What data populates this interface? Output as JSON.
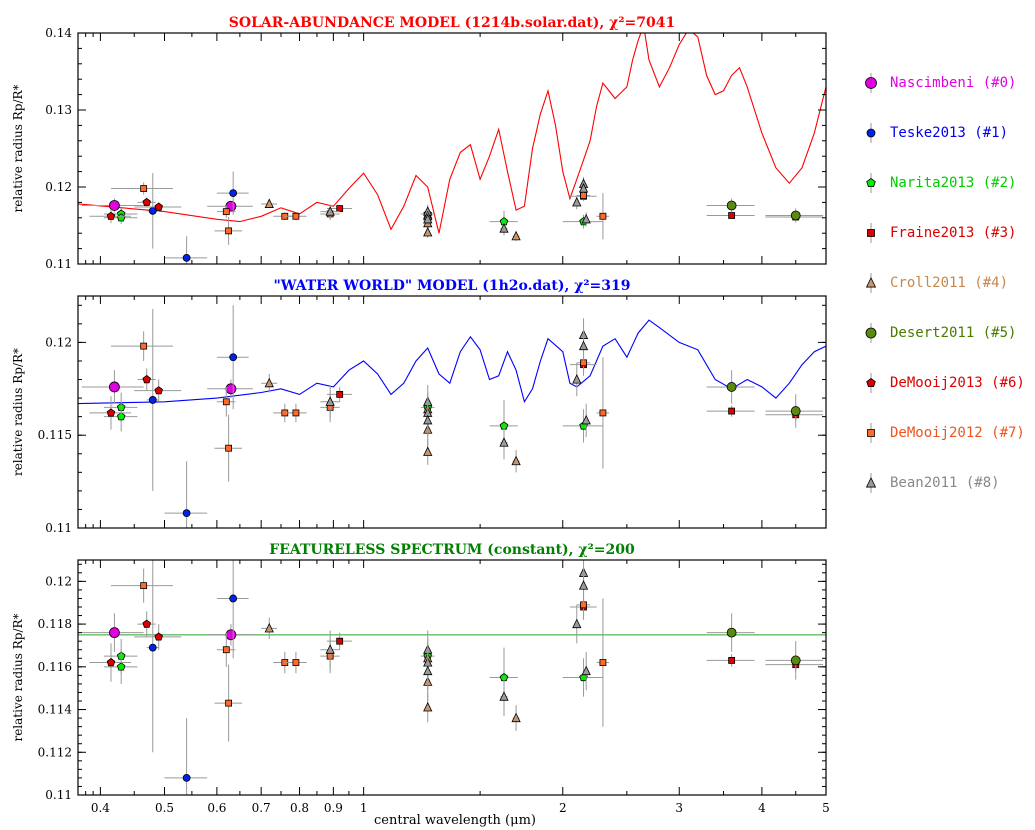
{
  "figure": {
    "xlabel": "central wavelength (μm)",
    "xscale": "log",
    "xlim": [
      0.37,
      5.0
    ],
    "x_ticks": [
      0.4,
      0.5,
      0.6,
      0.7,
      0.8,
      0.9,
      1,
      2,
      3,
      4,
      5
    ],
    "x_tick_labels": [
      "0.4",
      "0.5",
      "0.6",
      "0.7",
      "0.8",
      "0.9",
      "1",
      "2",
      "3",
      "4",
      "5"
    ]
  },
  "chart_data": [
    {
      "type": "line",
      "title": "SOLAR-ABUNDANCE MODEL (1214b.solar.dat), χ²=7041",
      "title_color": "#ff0000",
      "ylabel": "relative radius Rp/R*",
      "ylim": [
        0.11,
        0.14
      ],
      "y_ticks": [
        0.11,
        0.12,
        0.13,
        0.14
      ],
      "y_tick_labels": [
        "0.11",
        "0.12",
        "0.13",
        "0.14"
      ],
      "model": {
        "color": "#ff0000",
        "x": [
          0.37,
          0.5,
          0.6,
          0.65,
          0.7,
          0.75,
          0.8,
          0.85,
          0.9,
          0.95,
          1.0,
          1.05,
          1.1,
          1.15,
          1.2,
          1.25,
          1.3,
          1.35,
          1.4,
          1.45,
          1.5,
          1.55,
          1.6,
          1.65,
          1.7,
          1.75,
          1.8,
          1.85,
          1.9,
          1.95,
          2.0,
          2.05,
          2.1,
          2.15,
          2.2,
          2.25,
          2.3,
          2.4,
          2.5,
          2.55,
          2.6,
          2.65,
          2.7,
          2.8,
          2.9,
          3.0,
          3.1,
          3.2,
          3.3,
          3.4,
          3.5,
          3.6,
          3.7,
          3.8,
          4.0,
          4.2,
          4.4,
          4.6,
          4.8,
          5.0
        ],
        "y": [
          0.1178,
          0.1168,
          0.1158,
          0.1155,
          0.1162,
          0.1173,
          0.1165,
          0.118,
          0.1175,
          0.1198,
          0.1218,
          0.119,
          0.1145,
          0.1175,
          0.1215,
          0.12,
          0.114,
          0.121,
          0.1245,
          0.1255,
          0.121,
          0.124,
          0.1275,
          0.122,
          0.117,
          0.1175,
          0.125,
          0.1295,
          0.1325,
          0.128,
          0.122,
          0.1185,
          0.121,
          0.1235,
          0.126,
          0.1305,
          0.1335,
          0.1315,
          0.133,
          0.1365,
          0.139,
          0.141,
          0.1365,
          0.133,
          0.1355,
          0.1385,
          0.1405,
          0.1395,
          0.1345,
          0.132,
          0.1325,
          0.1345,
          0.1355,
          0.133,
          0.127,
          0.1225,
          0.1205,
          0.1225,
          0.127,
          0.133
        ]
      }
    },
    {
      "type": "line",
      "title": "\"WATER WORLD\" MODEL (1h2o.dat), χ²=319",
      "title_color": "#0000ff",
      "ylabel": "relative radius Rp/R*",
      "ylim": [
        0.11,
        0.1225
      ],
      "y_ticks": [
        0.11,
        0.115,
        0.12
      ],
      "y_tick_labels": [
        "0.11",
        "0.115",
        "0.12"
      ],
      "model": {
        "color": "#0000ff",
        "x": [
          0.37,
          0.5,
          0.6,
          0.7,
          0.75,
          0.8,
          0.85,
          0.9,
          0.95,
          1.0,
          1.05,
          1.1,
          1.15,
          1.2,
          1.25,
          1.3,
          1.35,
          1.4,
          1.45,
          1.5,
          1.55,
          1.6,
          1.65,
          1.7,
          1.75,
          1.8,
          1.85,
          1.9,
          2.0,
          2.05,
          2.1,
          2.2,
          2.3,
          2.4,
          2.5,
          2.6,
          2.7,
          2.8,
          3.0,
          3.2,
          3.4,
          3.6,
          3.8,
          4.0,
          4.2,
          4.4,
          4.6,
          4.8,
          5.0
        ],
        "y": [
          0.1167,
          0.1168,
          0.117,
          0.1173,
          0.1175,
          0.1172,
          0.1178,
          0.1176,
          0.1185,
          0.119,
          0.1183,
          0.1172,
          0.1178,
          0.119,
          0.1197,
          0.1183,
          0.1178,
          0.1195,
          0.1203,
          0.1196,
          0.118,
          0.1182,
          0.1195,
          0.1185,
          0.1168,
          0.1175,
          0.119,
          0.1202,
          0.1195,
          0.1178,
          0.1176,
          0.1182,
          0.1198,
          0.1202,
          0.1192,
          0.1205,
          0.1212,
          0.1208,
          0.12,
          0.1196,
          0.118,
          0.1175,
          0.118,
          0.1176,
          0.117,
          0.1178,
          0.1188,
          0.1195,
          0.1198
        ]
      }
    },
    {
      "type": "line",
      "title": "FEATURELESS SPECTRUM (constant), χ²=200",
      "title_color": "#008000",
      "ylabel": "relative radius Rp/R*",
      "ylim": [
        0.11,
        0.121
      ],
      "y_ticks": [
        0.11,
        0.112,
        0.114,
        0.116,
        0.118,
        0.12
      ],
      "y_tick_labels": [
        "0.11",
        "0.112",
        "0.114",
        "0.116",
        "0.118",
        "0.12"
      ],
      "model": {
        "color": "#66bb66",
        "x": [
          0.37,
          5.0
        ],
        "y": [
          0.1175,
          0.1175
        ]
      }
    }
  ],
  "datasets": [
    {
      "name": "Nascimbeni (#0)",
      "marker": "circle",
      "fill": "#e000e0",
      "color": "#e000e0",
      "size": 10,
      "points": [
        {
          "x": 0.42,
          "y": 0.1176,
          "xerr": 0.045,
          "yerr": 0.0009
        },
        {
          "x": 0.63,
          "y": 0.1175,
          "xerr": 0.05,
          "yerr": 0.0005
        }
      ]
    },
    {
      "name": "Teske2013 (#1)",
      "marker": "circle",
      "fill": "#0022ee",
      "color": "#0000ee",
      "size": 7,
      "points": [
        {
          "x": 0.48,
          "y": 0.1169,
          "xerr": 0.01,
          "yerr": 0.0049
        },
        {
          "x": 0.54,
          "y": 0.1108,
          "xerr": 0.04,
          "yerr": 0.0028
        },
        {
          "x": 0.635,
          "y": 0.1192,
          "xerr": 0.035,
          "yerr": 0.0028
        }
      ]
    },
    {
      "name": "Narita2013 (#2)",
      "marker": "pentagon",
      "fill": "#00ee00",
      "color": "#00cc00",
      "size": 7,
      "points": [
        {
          "x": 0.43,
          "y": 0.1165,
          "xerr": 0.025,
          "yerr": 0.0008
        },
        {
          "x": 0.43,
          "y": 0.116,
          "xerr": 0.025,
          "yerr": 0.0008
        },
        {
          "x": 1.25,
          "y": 0.1165,
          "xerr": 0.03,
          "yerr": 0.0006
        },
        {
          "x": 1.63,
          "y": 0.1155,
          "xerr": 0.08,
          "yerr": 0.0014
        },
        {
          "x": 2.15,
          "y": 0.1155,
          "xerr": 0.15,
          "yerr": 0.0009
        }
      ]
    },
    {
      "name": "Fraine2013 (#3)",
      "marker": "square",
      "fill": "#dd0000",
      "color": "#dd0000",
      "size": 6,
      "points": [
        {
          "x": 0.92,
          "y": 0.1172,
          "xerr": 0.04,
          "yerr": 0.0004
        },
        {
          "x": 2.15,
          "y": 0.1188,
          "xerr": 0.1,
          "yerr": 0.0006
        },
        {
          "x": 3.6,
          "y": 0.1163,
          "xerr": 0.3,
          "yerr": 0.0003
        },
        {
          "x": 4.5,
          "y": 0.1161,
          "xerr": 0.45,
          "yerr": 0.0003
        }
      ]
    },
    {
      "name": "Croll2011 (#4)",
      "marker": "triangle",
      "fill": "#c8966e",
      "color": "#c8864e",
      "size": 8,
      "points": [
        {
          "x": 0.72,
          "y": 0.1178,
          "xerr": 0.02,
          "yerr": 0.0005
        },
        {
          "x": 1.25,
          "y": 0.1164,
          "xerr": 0.01,
          "yerr": 0.0009
        },
        {
          "x": 1.25,
          "y": 0.1153,
          "xerr": 0.01,
          "yerr": 0.0009
        },
        {
          "x": 1.25,
          "y": 0.1141,
          "xerr": 0.01,
          "yerr": 0.0007
        },
        {
          "x": 1.7,
          "y": 0.1136,
          "xerr": 0.02,
          "yerr": 0.0006
        }
      ]
    },
    {
      "name": "Desert2011 (#5)",
      "marker": "circle",
      "fill": "#5a8a10",
      "color": "#4a7a00",
      "size": 9,
      "points": [
        {
          "x": 3.6,
          "y": 0.1176,
          "xerr": 0.3,
          "yerr": 0.0009
        },
        {
          "x": 4.5,
          "y": 0.1163,
          "xerr": 0.45,
          "yerr": 0.0009
        }
      ]
    },
    {
      "name": "DeMooij2013 (#6)",
      "marker": "pentagon",
      "fill": "#dd0000",
      "color": "#dd0000",
      "size": 7,
      "points": [
        {
          "x": 0.415,
          "y": 0.1162,
          "xerr": 0.03,
          "yerr": 0.0009
        },
        {
          "x": 0.47,
          "y": 0.118,
          "xerr": 0.015,
          "yerr": 0.0006
        },
        {
          "x": 0.49,
          "y": 0.1174,
          "xerr": 0.04,
          "yerr": 0.0006
        }
      ]
    },
    {
      "name": "DeMooij2012 (#7)",
      "marker": "square",
      "fill": "#ff6a2a",
      "color": "#ee5520",
      "size": 6,
      "points": [
        {
          "x": 0.465,
          "y": 0.1198,
          "xerr": 0.05,
          "yerr": 0.0008
        },
        {
          "x": 0.62,
          "y": 0.1168,
          "xerr": 0.02,
          "yerr": 0.0008
        },
        {
          "x": 0.625,
          "y": 0.1143,
          "xerr": 0.03,
          "yerr": 0.0018
        },
        {
          "x": 0.76,
          "y": 0.1162,
          "xerr": 0.03,
          "yerr": 0.0005
        },
        {
          "x": 0.79,
          "y": 0.1162,
          "xerr": 0.03,
          "yerr": 0.0005
        },
        {
          "x": 0.89,
          "y": 0.1165,
          "xerr": 0.03,
          "yerr": 0.0008
        },
        {
          "x": 2.15,
          "y": 0.1189,
          "xerr": 0.05,
          "yerr": 0.0005
        },
        {
          "x": 2.3,
          "y": 0.1162,
          "xerr": 0.05,
          "yerr": 0.003
        }
      ]
    },
    {
      "name": "Bean2011 (#8)",
      "marker": "triangle",
      "fill": "#9a9a9a",
      "color": "#888888",
      "size": 8,
      "points": [
        {
          "x": 0.89,
          "y": 0.1168,
          "xerr": 0.03,
          "yerr": 0.0009
        },
        {
          "x": 1.25,
          "y": 0.1168,
          "xerr": 0.01,
          "yerr": 0.0009
        },
        {
          "x": 1.25,
          "y": 0.1162,
          "xerr": 0.01,
          "yerr": 0.0009
        },
        {
          "x": 1.25,
          "y": 0.1158,
          "xerr": 0.01,
          "yerr": 0.0009
        },
        {
          "x": 1.63,
          "y": 0.1146,
          "xerr": 0.02,
          "yerr": 0.0009
        },
        {
          "x": 2.1,
          "y": 0.118,
          "xerr": 0.02,
          "yerr": 0.0009
        },
        {
          "x": 2.15,
          "y": 0.1204,
          "xerr": 0.02,
          "yerr": 0.0009
        },
        {
          "x": 2.15,
          "y": 0.1198,
          "xerr": 0.02,
          "yerr": 0.0009
        },
        {
          "x": 2.17,
          "y": 0.1158,
          "xerr": 0.02,
          "yerr": 0.0009
        }
      ]
    }
  ]
}
